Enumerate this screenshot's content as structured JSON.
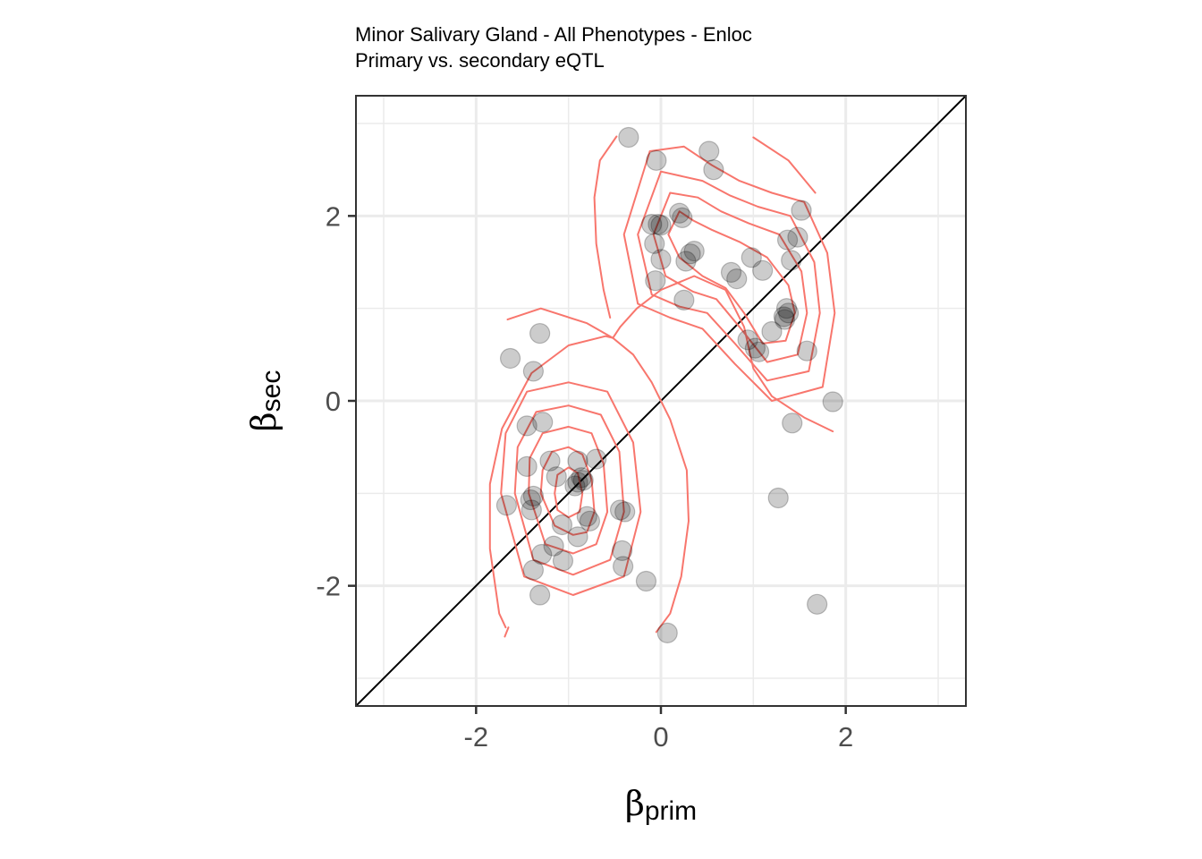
{
  "chart_data": {
    "type": "scatter",
    "title": "Minor Salivary Gland - All Phenotypes - Enloc",
    "subtitle": "Primary vs. secondary eQTL",
    "xlabel_symbol": "β",
    "xlabel_sub": "prim",
    "ylabel_symbol": "β",
    "ylabel_sub": "sec",
    "xlim": [
      -3.3,
      3.3
    ],
    "ylim": [
      -3.3,
      3.3
    ],
    "x_ticks": [
      -2,
      0,
      2
    ],
    "y_ticks": [
      -2,
      0,
      2
    ],
    "x_tick_labels": [
      "-2",
      "0",
      "2"
    ],
    "y_tick_labels": [
      "-2",
      "0",
      "2"
    ],
    "grid": true,
    "reference_line": "y = x",
    "colors": {
      "points": "#000000",
      "point_alpha": 0.2,
      "contours": "#f8766d",
      "grid": "#ebebeb",
      "panel_border": "#333333",
      "ref_line": "#000000"
    },
    "points": [
      [
        -0.35,
        2.85
      ],
      [
        0.52,
        2.7
      ],
      [
        -0.05,
        2.6
      ],
      [
        0.57,
        2.5
      ],
      [
        0.2,
        2.03
      ],
      [
        0.23,
        1.98
      ],
      [
        -0.1,
        1.91
      ],
      [
        -0.03,
        1.91
      ],
      [
        0.0,
        1.9
      ],
      [
        -0.07,
        1.7
      ],
      [
        0.0,
        1.53
      ],
      [
        0.27,
        1.51
      ],
      [
        0.32,
        1.59
      ],
      [
        0.36,
        1.62
      ],
      [
        0.76,
        1.39
      ],
      [
        0.82,
        1.32
      ],
      [
        -0.06,
        1.3
      ],
      [
        0.25,
        1.09
      ],
      [
        0.98,
        1.55
      ],
      [
        1.1,
        1.41
      ],
      [
        1.52,
        2.06
      ],
      [
        1.37,
        1.74
      ],
      [
        1.48,
        1.77
      ],
      [
        1.41,
        1.52
      ],
      [
        1.36,
        1.0
      ],
      [
        1.38,
        0.95
      ],
      [
        1.34,
        0.88
      ],
      [
        1.33,
        0.91
      ],
      [
        1.2,
        0.75
      ],
      [
        0.94,
        0.66
      ],
      [
        1.02,
        0.57
      ],
      [
        1.06,
        0.53
      ],
      [
        1.58,
        0.54
      ],
      [
        1.42,
        -0.24
      ],
      [
        1.86,
        -0.01
      ],
      [
        1.27,
        -1.05
      ],
      [
        1.69,
        -2.2
      ],
      [
        0.07,
        -2.51
      ],
      [
        -1.63,
        0.46
      ],
      [
        -1.31,
        0.73
      ],
      [
        -1.38,
        0.32
      ],
      [
        -1.45,
        -0.27
      ],
      [
        -1.28,
        -0.23
      ],
      [
        -1.45,
        -0.71
      ],
      [
        -1.2,
        -0.65
      ],
      [
        -1.13,
        -0.82
      ],
      [
        -0.9,
        -0.65
      ],
      [
        -0.7,
        -0.63
      ],
      [
        -0.86,
        -0.83
      ],
      [
        -0.84,
        -0.86
      ],
      [
        -0.9,
        -0.88
      ],
      [
        -0.93,
        -0.92
      ],
      [
        -1.38,
        -1.03
      ],
      [
        -1.41,
        -1.07
      ],
      [
        -1.4,
        -1.18
      ],
      [
        -1.67,
        -1.13
      ],
      [
        -1.07,
        -1.34
      ],
      [
        -0.8,
        -1.25
      ],
      [
        -0.77,
        -1.3
      ],
      [
        -0.44,
        -1.18
      ],
      [
        -0.39,
        -1.2
      ],
      [
        -0.9,
        -1.47
      ],
      [
        -1.16,
        -1.57
      ],
      [
        -1.06,
        -1.73
      ],
      [
        -1.29,
        -1.66
      ],
      [
        -0.42,
        -1.62
      ],
      [
        -0.41,
        -1.79
      ],
      [
        -1.38,
        -1.83
      ],
      [
        -1.31,
        -2.1
      ],
      [
        -0.16,
        -1.95
      ]
    ],
    "contours": [
      [
        [
          -0.48,
          2.86
        ],
        [
          -0.66,
          2.6
        ],
        [
          -0.72,
          2.2
        ],
        [
          -0.7,
          1.7
        ],
        [
          -0.62,
          1.2
        ],
        [
          -0.55,
          0.9
        ]
      ],
      [
        [
          -1.66,
          0.88
        ],
        [
          -1.3,
          1.0
        ],
        [
          -0.8,
          0.84
        ],
        [
          -0.52,
          0.68
        ]
      ],
      [
        [
          -0.52,
          0.68
        ],
        [
          -0.3,
          0.5
        ],
        [
          -0.1,
          0.2
        ],
        [
          0.1,
          -0.2
        ],
        [
          0.28,
          -0.75
        ],
        [
          0.3,
          -1.3
        ],
        [
          0.22,
          -1.9
        ],
        [
          0.1,
          -2.3
        ],
        [
          -0.05,
          -2.5
        ]
      ],
      [
        [
          -1.68,
          -2.45
        ],
        [
          -1.75,
          -2.3
        ],
        [
          -1.85,
          -1.6
        ],
        [
          -1.85,
          -0.9
        ],
        [
          -1.72,
          -0.3
        ],
        [
          -1.4,
          0.3
        ],
        [
          -1.0,
          0.6
        ],
        [
          -0.6,
          0.7
        ],
        [
          -0.52,
          0.68
        ]
      ],
      [
        [
          -1.65,
          -2.45
        ],
        [
          -1.69,
          -2.55
        ]
      ],
      [
        [
          1.0,
          2.85
        ],
        [
          1.38,
          2.6
        ],
        [
          1.67,
          2.25
        ]
      ],
      [
        [
          -0.52,
          0.68
        ],
        [
          -0.44,
          0.8
        ],
        [
          -0.26,
          1.0
        ],
        [
          0.0,
          1.2
        ],
        [
          0.36,
          1.35
        ],
        [
          0.7,
          1.2
        ],
        [
          0.9,
          0.8
        ],
        [
          1.0,
          0.35
        ],
        [
          1.2,
          0.05
        ],
        [
          1.55,
          -0.18
        ],
        [
          1.86,
          -0.33
        ]
      ],
      [
        [
          -1.3,
          -1.0
        ],
        [
          -1.28,
          -0.75
        ],
        [
          -1.18,
          -0.55
        ],
        [
          -1.0,
          -0.5
        ],
        [
          -0.85,
          -0.58
        ],
        [
          -0.75,
          -0.85
        ],
        [
          -0.72,
          -1.2
        ],
        [
          -0.8,
          -1.42
        ],
        [
          -0.95,
          -1.45
        ],
        [
          -1.15,
          -1.35
        ],
        [
          -1.3,
          -1.0
        ]
      ],
      [
        [
          -1.15,
          -1.0
        ],
        [
          -1.12,
          -0.8
        ],
        [
          -1.0,
          -0.72
        ],
        [
          -0.9,
          -0.78
        ],
        [
          -0.85,
          -1.0
        ],
        [
          -0.88,
          -1.2
        ],
        [
          -1.0,
          -1.26
        ],
        [
          -1.12,
          -1.18
        ],
        [
          -1.15,
          -1.0
        ]
      ],
      [
        [
          -1.43,
          -1.0
        ],
        [
          -1.42,
          -0.62
        ],
        [
          -1.28,
          -0.35
        ],
        [
          -1.0,
          -0.28
        ],
        [
          -0.75,
          -0.35
        ],
        [
          -0.62,
          -0.68
        ],
        [
          -0.58,
          -1.2
        ],
        [
          -0.7,
          -1.55
        ],
        [
          -0.95,
          -1.65
        ],
        [
          -1.25,
          -1.55
        ],
        [
          -1.43,
          -1.0
        ]
      ],
      [
        [
          -1.58,
          -1.0
        ],
        [
          -1.55,
          -0.5
        ],
        [
          -1.35,
          -0.12
        ],
        [
          -1.0,
          -0.05
        ],
        [
          -0.65,
          -0.15
        ],
        [
          -0.45,
          -0.55
        ],
        [
          -0.4,
          -1.2
        ],
        [
          -0.55,
          -1.72
        ],
        [
          -0.95,
          -1.88
        ],
        [
          -1.38,
          -1.72
        ],
        [
          -1.58,
          -1.0
        ]
      ],
      [
        [
          -1.73,
          -1.0
        ],
        [
          -1.68,
          -0.35
        ],
        [
          -1.45,
          0.1
        ],
        [
          -1.0,
          0.2
        ],
        [
          -0.58,
          0.1
        ],
        [
          -0.3,
          -0.45
        ],
        [
          -0.22,
          -1.2
        ],
        [
          -0.4,
          -1.9
        ],
        [
          -0.95,
          -2.1
        ],
        [
          -1.48,
          -1.9
        ],
        [
          -1.73,
          -1.0
        ]
      ],
      [
        [
          0.2,
          2.05
        ],
        [
          0.35,
          1.95
        ],
        [
          0.55,
          1.85
        ],
        [
          0.85,
          1.72
        ],
        [
          1.15,
          1.55
        ],
        [
          1.38,
          1.25
        ],
        [
          1.45,
          0.95
        ],
        [
          1.35,
          0.65
        ],
        [
          1.1,
          0.62
        ],
        [
          0.9,
          0.95
        ],
        [
          0.7,
          1.22
        ],
        [
          0.45,
          1.35
        ],
        [
          0.2,
          1.55
        ],
        [
          0.08,
          1.8
        ],
        [
          0.2,
          2.05
        ]
      ],
      [
        [
          0.1,
          2.25
        ],
        [
          0.4,
          2.2
        ],
        [
          0.65,
          2.05
        ],
        [
          0.95,
          1.92
        ],
        [
          1.28,
          1.8
        ],
        [
          1.52,
          1.4
        ],
        [
          1.58,
          0.95
        ],
        [
          1.48,
          0.5
        ],
        [
          1.15,
          0.42
        ],
        [
          0.85,
          0.8
        ],
        [
          0.6,
          1.1
        ],
        [
          0.35,
          1.18
        ],
        [
          0.05,
          1.35
        ],
        [
          -0.08,
          1.8
        ],
        [
          0.1,
          2.25
        ]
      ],
      [
        [
          0.0,
          2.48
        ],
        [
          0.45,
          2.38
        ],
        [
          0.75,
          2.22
        ],
        [
          1.05,
          2.1
        ],
        [
          1.4,
          2.0
        ],
        [
          1.66,
          1.5
        ],
        [
          1.72,
          0.95
        ],
        [
          1.6,
          0.32
        ],
        [
          1.15,
          0.22
        ],
        [
          0.8,
          0.62
        ],
        [
          0.5,
          0.95
        ],
        [
          0.2,
          1.02
        ],
        [
          -0.1,
          1.15
        ],
        [
          -0.25,
          1.8
        ],
        [
          0.0,
          2.48
        ]
      ],
      [
        [
          -0.12,
          2.7
        ],
        [
          0.25,
          2.75
        ],
        [
          0.55,
          2.55
        ],
        [
          0.85,
          2.38
        ],
        [
          1.2,
          2.25
        ],
        [
          1.55,
          2.15
        ],
        [
          1.8,
          1.6
        ],
        [
          1.88,
          0.95
        ],
        [
          1.75,
          0.15
        ],
        [
          1.2,
          0.0
        ],
        [
          0.8,
          0.4
        ],
        [
          0.45,
          0.78
        ],
        [
          0.1,
          0.9
        ],
        [
          -0.25,
          1.05
        ],
        [
          -0.4,
          1.8
        ],
        [
          -0.12,
          2.7
        ]
      ]
    ]
  }
}
